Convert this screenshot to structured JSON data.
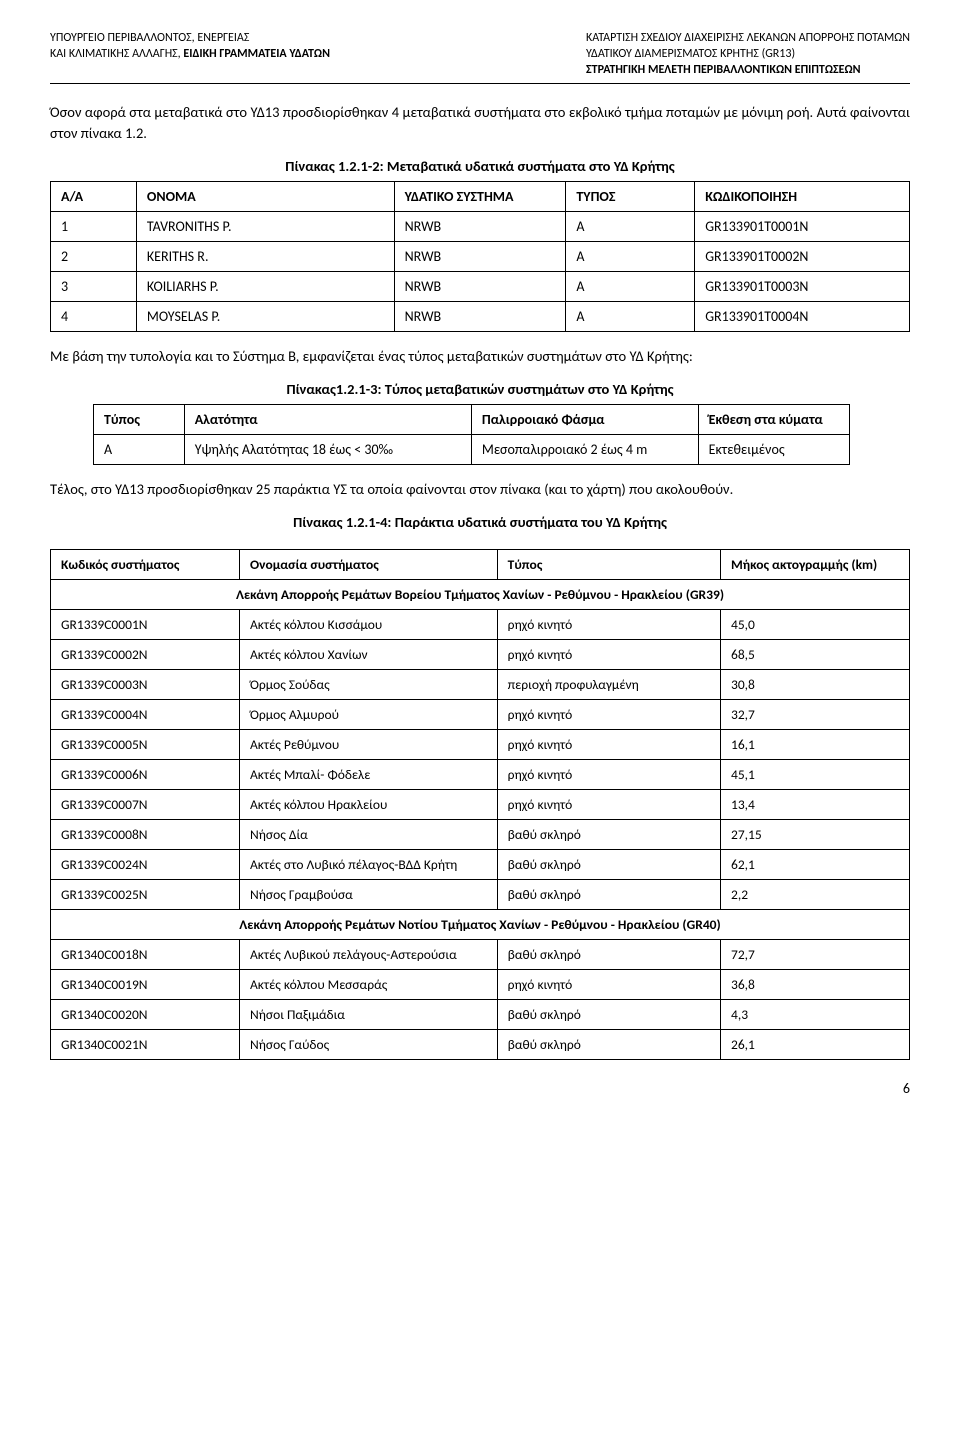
{
  "header": {
    "left_line1": "ΥΠΟΥΡΓΕΙΟ ΠΕΡΙΒΑΛΛΟΝΤΟΣ, ΕΝΕΡΓΕΙΑΣ",
    "left_line2": "ΚΑΙ ΚΛΙΜΑΤΙΚΗΣ ΑΛΛΑΓΗΣ, ",
    "left_line2_bold": "ΕΙΔΙΚΗ ΓΡΑΜΜΑΤΕΙΑ ΥΔΑΤΩΝ",
    "right_line1": "ΚΑΤΑΡΤΙΣΗ ΣΧΕΔΙΟΥ ΔΙΑΧΕΙΡΙΣΗΣ ΛΕΚΑΝΩΝ ΑΠΟΡΡΟΗΣ ΠΟΤΑΜΩΝ",
    "right_line2": "ΥΔΑΤΙΚΟΥ ΔΙΑΜΕΡΙΣΜΑΤΟΣ ΚΡΗΤΗΣ (GR13)",
    "right_line3": "ΣΤΡΑΤΗΓΙΚΗ ΜΕΛΕΤΗ ΠΕΡΙΒΑΛΛΟΝΤΙΚΩΝ ΕΠΙΠΤΩΣΕΩΝ"
  },
  "paragraphs": {
    "p1": "Όσον αφορά στα μεταβατικά στο ΥΔ13 προσδιορίσθηκαν 4 μεταβατικά συστήματα στο εκβολικό τμήμα ποταμών με μόνιμη ροή. Αυτά φαίνονται στον πίνακα 1.2.",
    "p2": "Με βάση την τυπολογία και το Σύστημα Β, εμφανίζεται ένας τύπος μεταβατικών συστημάτων στο ΥΔ Κρήτης:",
    "p3": "Τέλος, στο ΥΔ13 προσδιορίσθηκαν 25 παράκτια ΥΣ τα οποία φαίνονται στον πίνακα (και το χάρτη) που ακολουθούν."
  },
  "captions": {
    "c1": "Πίνακας 1.2.1-2: Μεταβατικά υδατικά συστήματα στο ΥΔ Κρήτης",
    "c2": "Πίνακας1.2.1-3: Τύπος μεταβατικών συστημάτων στο ΥΔ Κρήτης",
    "c3": "Πίνακας 1.2.1-4: Παράκτια υδατικά συστήματα του ΥΔ Κρήτης"
  },
  "table1": {
    "headers": [
      "Α/Α",
      "ΟΝΟΜΑ",
      "ΥΔΑΤΙΚΟ ΣΥΣΤΗΜΑ",
      "ΤΥΠΟΣ",
      "ΚΩΔΙΚΟΠΟΙΗΣΗ"
    ],
    "rows": [
      [
        "1",
        "TAVRONITHS P.",
        "NRWB",
        "A",
        "GR133901T0001N"
      ],
      [
        "2",
        "KERITHS R.",
        "NRWB",
        "A",
        "GR133901T0002N"
      ],
      [
        "3",
        "KOILIARHS P.",
        "NRWB",
        "A",
        "GR133901T0003N"
      ],
      [
        "4",
        "MOYSELAS P.",
        "NRWB",
        "A",
        "GR133901T0004N"
      ]
    ]
  },
  "table2": {
    "headers": [
      "Τύπος",
      "Αλατότητα",
      "Παλιρροιακό Φάσμα",
      "Έκθεση στα κύματα"
    ],
    "rows": [
      [
        "Α",
        "Υψηλής Αλατότητας 18 έως < 30‰",
        "Μεσοπαλιρροιακό 2 έως 4 m",
        "Εκτεθειμένος"
      ]
    ]
  },
  "table3": {
    "headers": [
      "Κωδικός συστήματος",
      "Ονομασία συστήματος",
      "Τύπος",
      "Μήκος ακτογραμμής (km)"
    ],
    "section1": "Λεκάνη Απορροής Ρεμάτων Βορείου Τμήματος Χανίων - Ρεθύμνου - Ηρακλείου (GR39)",
    "rows1": [
      [
        "GR1339C0001N",
        "Ακτές κόλπου Κισσάμου",
        "ρηχό κινητό",
        "45,0"
      ],
      [
        "GR1339C0002N",
        "Ακτές κόλπου Χανίων",
        "ρηχό κινητό",
        "68,5"
      ],
      [
        "GR1339C0003N",
        "Όρμος Σούδας",
        "περιοχή προφυλαγμένη",
        "30,8"
      ],
      [
        "GR1339C0004N",
        "Όρμος Αλμυρού",
        "ρηχό κινητό",
        "32,7"
      ],
      [
        "GR1339C0005N",
        "Ακτές Ρεθύμνου",
        "ρηχό κινητό",
        "16,1"
      ],
      [
        "GR1339C0006N",
        "Ακτές Μπαλί- Φόδελε",
        "ρηχό κινητό",
        "45,1"
      ],
      [
        "GR1339C0007N",
        "Ακτές κόλπου Ηρακλείου",
        "ρηχό κινητό",
        "13,4"
      ],
      [
        "GR1339C0008N",
        "Νήσος Δία",
        "βαθύ σκληρό",
        "27,15"
      ],
      [
        "GR1339C0024N",
        "Ακτές στο Λυβικό πέλαγος-ΒΔΔ Κρήτη",
        "βαθύ σκληρό",
        "62,1"
      ],
      [
        "GR1339C0025N",
        "Νήσος Γραμβούσα",
        "βαθύ σκληρό",
        "2,2"
      ]
    ],
    "section2": "Λεκάνη Απορροής Ρεμάτων Νοτίου Τμήματος Χανίων - Ρεθύμνου - Ηρακλείου (GR40)",
    "rows2": [
      [
        "GR1340C0018N",
        "Ακτές Λυβικού πελάγους-Αστερούσια",
        "βαθύ σκληρό",
        "72,7"
      ],
      [
        "GR1340C0019N",
        "Ακτές κόλπου Μεσσαράς",
        "ρηχό κινητό",
        "36,8"
      ],
      [
        "GR1340C0020N",
        "Νήσοι Παξιμάδια",
        "βαθύ σκληρό",
        "4,3"
      ],
      [
        "GR1340C0021N",
        "Νήσος Γαύδος",
        "βαθύ σκληρό",
        "26,1"
      ]
    ]
  },
  "page_number": "6"
}
